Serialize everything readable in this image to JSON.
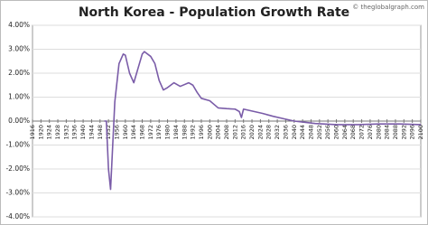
{
  "chart_data": {
    "type": "line",
    "title": "North Korea - Population Growth Rate",
    "watermark": "© theglobalgraph.com",
    "x": [
      1950,
      1951,
      1952,
      1953,
      1955,
      1957,
      1959,
      1960,
      1962,
      1964,
      1966,
      1968,
      1969,
      1972,
      1974,
      1976,
      1978,
      1980,
      1983,
      1986,
      1990,
      1992,
      1994,
      1996,
      2000,
      2004,
      2008,
      2012,
      2014,
      2015,
      2016,
      2020,
      2025,
      2030,
      2035,
      2040,
      2045,
      2050,
      2060,
      2070,
      2080,
      2090,
      2100
    ],
    "values": [
      0.0,
      0.0,
      -2.0,
      -2.85,
      0.8,
      2.4,
      2.8,
      2.75,
      2.0,
      1.6,
      2.2,
      2.8,
      2.9,
      2.7,
      2.4,
      1.7,
      1.3,
      1.4,
      1.6,
      1.45,
      1.6,
      1.5,
      1.2,
      0.95,
      0.85,
      0.55,
      0.52,
      0.5,
      0.4,
      0.15,
      0.5,
      0.42,
      0.32,
      0.2,
      0.1,
      0.0,
      -0.05,
      -0.1,
      -0.15,
      -0.15,
      -0.12,
      -0.12,
      -0.15
    ],
    "color": "#7a5ca8",
    "xlim": [
      1916,
      2100
    ],
    "xticks": [
      1916,
      1920,
      1924,
      1928,
      1932,
      1936,
      1940,
      1944,
      1948,
      1952,
      1956,
      1960,
      1964,
      1968,
      1972,
      1976,
      1980,
      1984,
      1988,
      1992,
      1996,
      2000,
      2004,
      2008,
      2012,
      2016,
      2020,
      2024,
      2028,
      2032,
      2036,
      2040,
      2044,
      2048,
      2052,
      2056,
      2060,
      2064,
      2068,
      2072,
      2076,
      2080,
      2084,
      2088,
      2092,
      2096,
      2100
    ],
    "ylim": [
      -4,
      4
    ],
    "yticks": [
      {
        "value": 4,
        "label": "4.00%"
      },
      {
        "value": 3,
        "label": "3.00%"
      },
      {
        "value": 2,
        "label": "2.00%"
      },
      {
        "value": 1,
        "label": "1.00%"
      },
      {
        "value": 0,
        "label": "0.00%"
      },
      {
        "value": -1,
        "label": "-1.00%"
      },
      {
        "value": -2,
        "label": "-2.00%"
      },
      {
        "value": -3,
        "label": "-3.00%"
      },
      {
        "value": -4,
        "label": "-4.00%"
      }
    ],
    "grid": true
  }
}
